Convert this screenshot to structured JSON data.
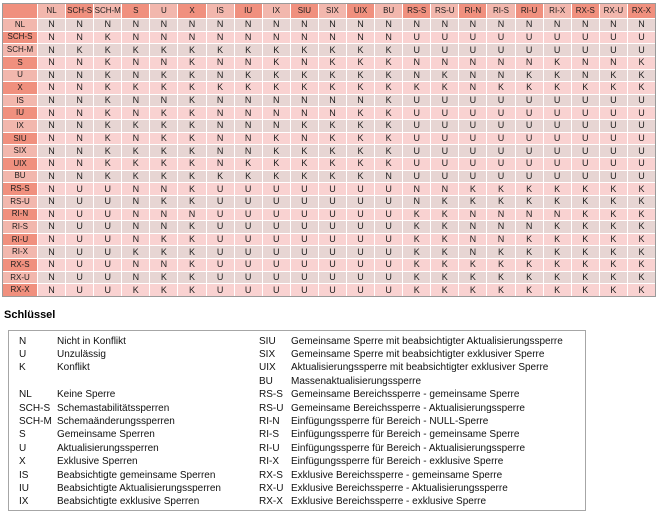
{
  "matrix": {
    "columns": [
      "NL",
      "SCH-S",
      "SCH-M",
      "S",
      "U",
      "X",
      "IS",
      "IU",
      "IX",
      "SIU",
      "SIX",
      "UIX",
      "BU",
      "RS-S",
      "RS-U",
      "RI-N",
      "RI-S",
      "RI-U",
      "RI-X",
      "RX-S",
      "RX-U",
      "RX-X"
    ],
    "rows": [
      {
        "label": "NL",
        "cells": [
          "N",
          "N",
          "N",
          "N",
          "N",
          "N",
          "N",
          "N",
          "N",
          "N",
          "N",
          "N",
          "N",
          "N",
          "N",
          "N",
          "N",
          "N",
          "N",
          "N",
          "N",
          "N"
        ]
      },
      {
        "label": "SCH-S",
        "cells": [
          "N",
          "N",
          "K",
          "N",
          "N",
          "N",
          "N",
          "N",
          "N",
          "N",
          "N",
          "N",
          "N",
          "U",
          "U",
          "U",
          "U",
          "U",
          "U",
          "U",
          "U",
          "U"
        ]
      },
      {
        "label": "SCH-M",
        "cells": [
          "N",
          "K",
          "K",
          "K",
          "K",
          "K",
          "K",
          "K",
          "K",
          "K",
          "K",
          "K",
          "K",
          "U",
          "U",
          "U",
          "U",
          "U",
          "U",
          "U",
          "U",
          "U"
        ]
      },
      {
        "label": "S",
        "cells": [
          "N",
          "N",
          "K",
          "N",
          "N",
          "K",
          "N",
          "N",
          "K",
          "N",
          "K",
          "K",
          "K",
          "N",
          "N",
          "N",
          "N",
          "N",
          "K",
          "N",
          "N",
          "K"
        ]
      },
      {
        "label": "U",
        "cells": [
          "N",
          "N",
          "K",
          "N",
          "K",
          "K",
          "N",
          "K",
          "K",
          "K",
          "K",
          "K",
          "K",
          "N",
          "K",
          "N",
          "N",
          "K",
          "K",
          "N",
          "K",
          "K"
        ]
      },
      {
        "label": "X",
        "cells": [
          "N",
          "N",
          "K",
          "K",
          "K",
          "K",
          "K",
          "K",
          "K",
          "K",
          "K",
          "K",
          "K",
          "K",
          "K",
          "N",
          "K",
          "K",
          "K",
          "K",
          "K",
          "K"
        ]
      },
      {
        "label": "IS",
        "cells": [
          "N",
          "N",
          "K",
          "N",
          "N",
          "K",
          "N",
          "N",
          "N",
          "N",
          "N",
          "N",
          "K",
          "U",
          "U",
          "U",
          "U",
          "U",
          "U",
          "U",
          "U",
          "U"
        ]
      },
      {
        "label": "IU",
        "cells": [
          "N",
          "N",
          "K",
          "N",
          "K",
          "K",
          "N",
          "N",
          "N",
          "N",
          "N",
          "K",
          "K",
          "U",
          "U",
          "U",
          "U",
          "U",
          "U",
          "U",
          "U",
          "U"
        ]
      },
      {
        "label": "IX",
        "cells": [
          "N",
          "N",
          "K",
          "K",
          "K",
          "K",
          "N",
          "N",
          "N",
          "K",
          "K",
          "K",
          "K",
          "U",
          "U",
          "U",
          "U",
          "U",
          "U",
          "U",
          "U",
          "U"
        ]
      },
      {
        "label": "SIU",
        "cells": [
          "N",
          "N",
          "K",
          "N",
          "K",
          "K",
          "N",
          "N",
          "K",
          "N",
          "K",
          "K",
          "K",
          "U",
          "U",
          "U",
          "U",
          "U",
          "U",
          "U",
          "U",
          "U"
        ]
      },
      {
        "label": "SIX",
        "cells": [
          "N",
          "N",
          "K",
          "K",
          "K",
          "K",
          "N",
          "N",
          "K",
          "K",
          "K",
          "K",
          "K",
          "U",
          "U",
          "U",
          "U",
          "U",
          "U",
          "U",
          "U",
          "U"
        ]
      },
      {
        "label": "UIX",
        "cells": [
          "N",
          "N",
          "K",
          "K",
          "K",
          "K",
          "N",
          "K",
          "K",
          "K",
          "K",
          "K",
          "K",
          "U",
          "U",
          "U",
          "U",
          "U",
          "U",
          "U",
          "U",
          "U"
        ]
      },
      {
        "label": "BU",
        "cells": [
          "N",
          "N",
          "K",
          "K",
          "K",
          "K",
          "K",
          "K",
          "K",
          "K",
          "K",
          "K",
          "N",
          "U",
          "U",
          "U",
          "U",
          "U",
          "U",
          "U",
          "U",
          "U"
        ]
      },
      {
        "label": "RS-S",
        "cells": [
          "N",
          "U",
          "U",
          "N",
          "N",
          "K",
          "U",
          "U",
          "U",
          "U",
          "U",
          "U",
          "U",
          "N",
          "N",
          "K",
          "K",
          "K",
          "K",
          "K",
          "K",
          "K"
        ]
      },
      {
        "label": "RS-U",
        "cells": [
          "N",
          "U",
          "U",
          "N",
          "K",
          "K",
          "U",
          "U",
          "U",
          "U",
          "U",
          "U",
          "U",
          "N",
          "K",
          "K",
          "K",
          "K",
          "K",
          "K",
          "K",
          "K"
        ]
      },
      {
        "label": "RI-N",
        "cells": [
          "N",
          "U",
          "U",
          "N",
          "N",
          "N",
          "U",
          "U",
          "U",
          "U",
          "U",
          "U",
          "U",
          "K",
          "K",
          "N",
          "N",
          "N",
          "N",
          "K",
          "K",
          "K"
        ]
      },
      {
        "label": "RI-S",
        "cells": [
          "N",
          "U",
          "U",
          "N",
          "N",
          "K",
          "U",
          "U",
          "U",
          "U",
          "U",
          "U",
          "U",
          "K",
          "K",
          "N",
          "N",
          "N",
          "K",
          "K",
          "K",
          "K"
        ]
      },
      {
        "label": "RI-U",
        "cells": [
          "N",
          "U",
          "U",
          "N",
          "K",
          "K",
          "U",
          "U",
          "U",
          "U",
          "U",
          "U",
          "U",
          "K",
          "K",
          "N",
          "N",
          "K",
          "K",
          "K",
          "K",
          "K"
        ]
      },
      {
        "label": "RI-X",
        "cells": [
          "N",
          "U",
          "U",
          "K",
          "K",
          "K",
          "U",
          "U",
          "U",
          "U",
          "U",
          "U",
          "U",
          "K",
          "K",
          "N",
          "K",
          "K",
          "K",
          "K",
          "K",
          "K"
        ]
      },
      {
        "label": "RX-S",
        "cells": [
          "N",
          "U",
          "U",
          "N",
          "N",
          "K",
          "U",
          "U",
          "U",
          "U",
          "U",
          "U",
          "U",
          "K",
          "K",
          "K",
          "K",
          "K",
          "K",
          "K",
          "K",
          "K"
        ]
      },
      {
        "label": "RX-U",
        "cells": [
          "N",
          "U",
          "U",
          "N",
          "K",
          "K",
          "U",
          "U",
          "U",
          "U",
          "U",
          "U",
          "U",
          "K",
          "K",
          "K",
          "K",
          "K",
          "K",
          "K",
          "K",
          "K"
        ]
      },
      {
        "label": "RX-X",
        "cells": [
          "N",
          "U",
          "U",
          "K",
          "K",
          "K",
          "U",
          "U",
          "U",
          "U",
          "U",
          "U",
          "U",
          "K",
          "K",
          "K",
          "K",
          "K",
          "K",
          "K",
          "K",
          "K"
        ]
      }
    ]
  },
  "legend": {
    "title": "Schlüssel",
    "rows": [
      {
        "code1": "N",
        "desc1": "Nicht in Konflikt",
        "code2": "SIU",
        "desc2": "Gemeinsame Sperre mit beabsichtigter Aktualisierungssperre"
      },
      {
        "code1": "U",
        "desc1": "Unzulässig",
        "code2": "SIX",
        "desc2": "Gemeinsame Sperre mit beabsichtigter exklusiver Sperre"
      },
      {
        "code1": "K",
        "desc1": "Konflikt",
        "code2": "UIX",
        "desc2": "Aktualisierungssperre mit beabsichtigter exklusiver Sperre"
      },
      {
        "code1": "",
        "desc1": "",
        "code2": "BU",
        "desc2": "Massenaktualisierungssperre"
      },
      {
        "code1": "NL",
        "desc1": "Keine Sperre",
        "code2": "RS-S",
        "desc2": "Gemeinsame Bereichssperre - gemeinsame Sperre"
      },
      {
        "code1": "SCH-S",
        "desc1": "Schemastabilitätssperren",
        "code2": "RS-U",
        "desc2": "Gemeinsame Bereichssperre - Aktualisierungssperre"
      },
      {
        "code1": "SCH-M",
        "desc1": "Schemaänderungssperren",
        "code2": "RI-N",
        "desc2": "Einfügungssperre für Bereich - NULL-Sperre"
      },
      {
        "code1": "S",
        "desc1": "Gemeinsame Sperren",
        "code2": "RI-S",
        "desc2": "Einfügungssperre für Bereich - gemeinsame Sperre"
      },
      {
        "code1": "U",
        "desc1": "Aktualisierungssperren",
        "code2": "RI-U",
        "desc2": "Einfügungssperre für Bereich - Aktualisierungssperre"
      },
      {
        "code1": "X",
        "desc1": "Exklusive Sperren",
        "code2": "RI-X",
        "desc2": "Einfügungssperre für Bereich - exklusive Sperre"
      },
      {
        "code1": "IS",
        "desc1": "Beabsichtigte gemeinsame Sperren",
        "code2": "RX-S",
        "desc2": "Exklusive Bereichssperre - gemeinsame Sperre"
      },
      {
        "code1": "IU",
        "desc1": "Beabsichtigte Aktualisierungssperren",
        "code2": "RX-U",
        "desc2": "Exklusive Bereichssperre - Aktualisierungssperre"
      },
      {
        "code1": "IX",
        "desc1": "Beabsichtigte exklusive Sperren",
        "code2": "RX-X",
        "desc2": "Exklusive Bereichssperre - exklusive Sperre"
      }
    ]
  },
  "colors": {
    "header_dark": "#F0907E",
    "header_light": "#F2B7AD",
    "row_gray": "#E7D5D3",
    "row_pink": "#F9D2D1",
    "grid_line": "#FFFFFF"
  }
}
